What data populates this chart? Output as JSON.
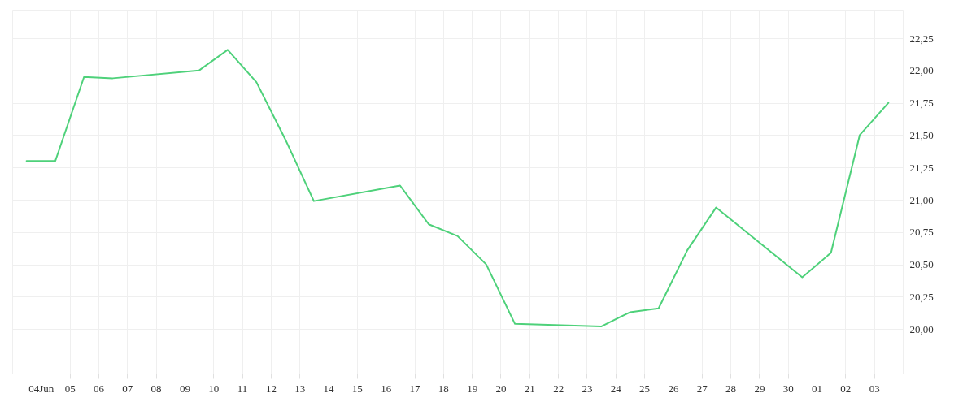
{
  "chart_data": {
    "type": "line",
    "x": [
      "--06-03T12:00",
      "--06-04T12:00",
      "--06-05T12:00",
      "--06-06T12:00",
      "--06-09T12:00",
      "--06-10T12:00",
      "--06-11T12:00",
      "--06-12T12:00",
      "--06-13T12:00",
      "--06-16T12:00",
      "--06-17T12:00",
      "--06-18T12:00",
      "--06-19T12:00",
      "--06-20T12:00",
      "--06-23T12:00",
      "--06-24T12:00",
      "--06-25T12:00",
      "--06-26T12:00",
      "--06-27T12:00",
      "--06-30T12:00",
      "--07-01T12:00",
      "--07-02T12:00",
      "--07-03T12:00"
    ],
    "series": [
      {
        "color": "#4ed17a",
        "values": [
          21.3,
          21.3,
          21.95,
          21.94,
          22.0,
          22.16,
          21.91,
          21.47,
          20.99,
          21.11,
          20.81,
          20.72,
          20.5,
          20.04,
          20.02,
          20.13,
          20.16,
          20.61,
          20.94,
          20.4,
          20.59,
          21.5,
          21.75
        ]
      }
    ],
    "xlim": [
      "--06-03T00:00",
      "--07-04T00:00"
    ],
    "xticks": [
      {
        "value": "--06-04",
        "label": "04Jun"
      },
      {
        "value": "--06-05",
        "label": "05"
      },
      {
        "value": "--06-06",
        "label": "06"
      },
      {
        "value": "--06-07",
        "label": "07"
      },
      {
        "value": "--06-08",
        "label": "08"
      },
      {
        "value": "--06-09",
        "label": "09"
      },
      {
        "value": "--06-10",
        "label": "10"
      },
      {
        "value": "--06-11",
        "label": "11"
      },
      {
        "value": "--06-12",
        "label": "12"
      },
      {
        "value": "--06-13",
        "label": "13"
      },
      {
        "value": "--06-14",
        "label": "14"
      },
      {
        "value": "--06-15",
        "label": "15"
      },
      {
        "value": "--06-16",
        "label": "16"
      },
      {
        "value": "--06-17",
        "label": "17"
      },
      {
        "value": "--06-18",
        "label": "18"
      },
      {
        "value": "--06-19",
        "label": "19"
      },
      {
        "value": "--06-20",
        "label": "20"
      },
      {
        "value": "--06-21",
        "label": "21"
      },
      {
        "value": "--06-22",
        "label": "22"
      },
      {
        "value": "--06-23",
        "label": "23"
      },
      {
        "value": "--06-24",
        "label": "24"
      },
      {
        "value": "--06-25",
        "label": "25"
      },
      {
        "value": "--06-26",
        "label": "26"
      },
      {
        "value": "--06-27",
        "label": "27"
      },
      {
        "value": "--06-28",
        "label": "28"
      },
      {
        "value": "--06-29",
        "label": "29"
      },
      {
        "value": "--06-30",
        "label": "30"
      },
      {
        "value": "--07-01",
        "label": "01"
      },
      {
        "value": "--07-02",
        "label": "02"
      },
      {
        "value": "--07-03",
        "label": "03"
      }
    ],
    "ylim": [
      19.656,
      22.47
    ],
    "yticks": [
      {
        "value": 20,
        "label": "20,00"
      },
      {
        "value": 20.25,
        "label": "20,25"
      },
      {
        "value": 20.5,
        "label": "20,50"
      },
      {
        "value": 20.75,
        "label": "20,75"
      },
      {
        "value": 21,
        "label": "21,00"
      },
      {
        "value": 21.25,
        "label": "21,25"
      },
      {
        "value": 21.5,
        "label": "21,50"
      },
      {
        "value": 21.75,
        "label": "21,75"
      },
      {
        "value": 22,
        "label": "22,00"
      },
      {
        "value": 22.25,
        "label": "22,25"
      }
    ],
    "grid": true,
    "line_style": "solid",
    "marker": "none"
  }
}
